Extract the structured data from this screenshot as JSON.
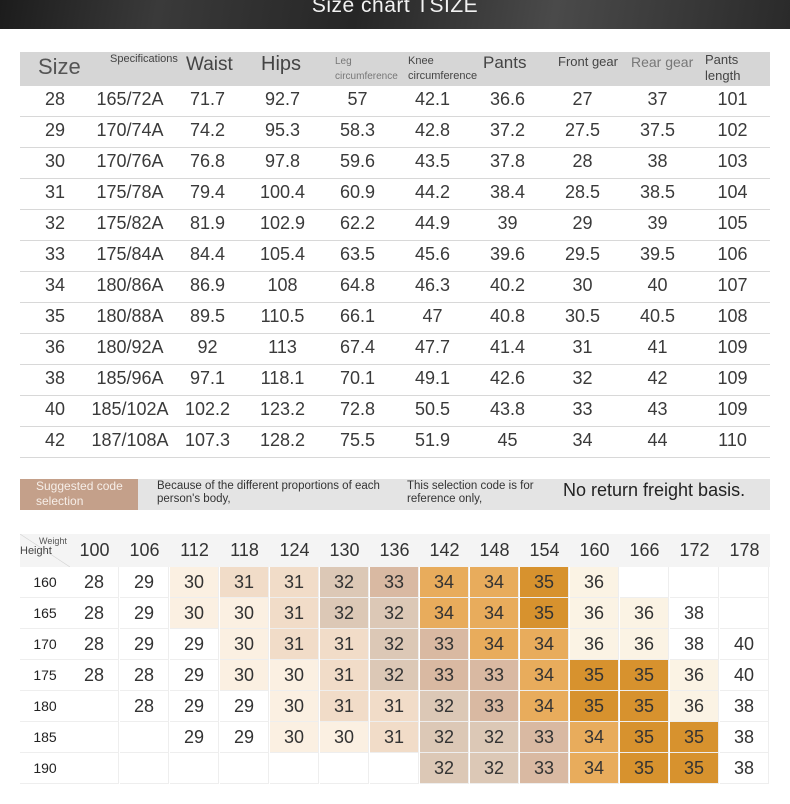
{
  "header": {
    "title": "Size chart TSIZE"
  },
  "size_table": {
    "headers": [
      "Size",
      "Specifications",
      "Waist",
      "Hips",
      "Leg circumference",
      "Knee circumference",
      "Pants",
      "Front gear",
      "Rear gear",
      "Pants length"
    ],
    "rows": [
      [
        "28",
        "165/72A",
        "71.7",
        "92.7",
        "57",
        "42.1",
        "36.6",
        "27",
        "37",
        "101"
      ],
      [
        "29",
        "170/74A",
        "74.2",
        "95.3",
        "58.3",
        "42.8",
        "37.2",
        "27.5",
        "37.5",
        "102"
      ],
      [
        "30",
        "170/76A",
        "76.8",
        "97.8",
        "59.6",
        "43.5",
        "37.8",
        "28",
        "38",
        "103"
      ],
      [
        "31",
        "175/78A",
        "79.4",
        "100.4",
        "60.9",
        "44.2",
        "38.4",
        "28.5",
        "38.5",
        "104"
      ],
      [
        "32",
        "175/82A",
        "81.9",
        "102.9",
        "62.2",
        "44.9",
        "39",
        "29",
        "39",
        "105"
      ],
      [
        "33",
        "175/84A",
        "84.4",
        "105.4",
        "63.5",
        "45.6",
        "39.6",
        "29.5",
        "39.5",
        "106"
      ],
      [
        "34",
        "180/86A",
        "86.9",
        "108",
        "64.8",
        "46.3",
        "40.2",
        "30",
        "40",
        "107"
      ],
      [
        "35",
        "180/88A",
        "89.5",
        "110.5",
        "66.1",
        "47",
        "40.8",
        "30.5",
        "40.5",
        "108"
      ],
      [
        "36",
        "180/92A",
        "92",
        "113",
        "67.4",
        "47.7",
        "41.4",
        "31",
        "41",
        "109"
      ],
      [
        "38",
        "185/96A",
        "97.1",
        "118.1",
        "70.1",
        "49.1",
        "42.6",
        "32",
        "42",
        "109"
      ],
      [
        "40",
        "185/102A",
        "102.2",
        "123.2",
        "72.8",
        "50.5",
        "43.8",
        "33",
        "43",
        "109"
      ],
      [
        "42",
        "187/108A",
        "107.3",
        "128.2",
        "75.5",
        "51.9",
        "45",
        "34",
        "44",
        "110"
      ]
    ]
  },
  "notice": {
    "tag": "Suggested code selection",
    "text1": "Because of the different proportions of each person's body,",
    "text2": "This selection code is for reference only,",
    "text3": "No return freight basis."
  },
  "size_grid": {
    "weight_label": "Weight",
    "height_label": "Height",
    "weights": [
      "100",
      "106",
      "112",
      "118",
      "124",
      "130",
      "136",
      "142",
      "148",
      "154",
      "160",
      "166",
      "172",
      "178"
    ],
    "rows": [
      {
        "height": "160",
        "cells": [
          "28",
          "29",
          "30",
          "31",
          "31",
          "32",
          "33",
          "34",
          "34",
          "35",
          "36",
          "",
          "",
          ""
        ]
      },
      {
        "height": "165",
        "cells": [
          "28",
          "29",
          "30",
          "30",
          "31",
          "32",
          "32",
          "34",
          "34",
          "35",
          "36",
          "36",
          "38",
          ""
        ]
      },
      {
        "height": "170",
        "cells": [
          "28",
          "29",
          "29",
          "30",
          "31",
          "31",
          "32",
          "33",
          "34",
          "34",
          "36",
          "36",
          "38",
          "40"
        ]
      },
      {
        "height": "175",
        "cells": [
          "28",
          "28",
          "29",
          "30",
          "30",
          "31",
          "32",
          "33",
          "33",
          "34",
          "35",
          "35",
          "36",
          "40"
        ]
      },
      {
        "height": "180",
        "cells": [
          "",
          "28",
          "29",
          "29",
          "30",
          "31",
          "31",
          "32",
          "33",
          "34",
          "35",
          "35",
          "36",
          "38"
        ]
      },
      {
        "height": "185",
        "cells": [
          "",
          "",
          "29",
          "29",
          "30",
          "30",
          "31",
          "32",
          "32",
          "33",
          "34",
          "35",
          "35",
          "38"
        ]
      },
      {
        "height": "190",
        "cells": [
          "",
          "",
          "",
          "",
          "",
          "",
          "",
          "32",
          "32",
          "33",
          "34",
          "35",
          "35",
          "38"
        ]
      }
    ],
    "size_colors": {
      "28": "#ffffff",
      "29": "#ffffff",
      "30": "#fbf0e2",
      "31": "#f1dcc8",
      "32": "#dcc8b6",
      "33": "#d9b9a2",
      "34": "#e8ac5c",
      "35": "#d7922e",
      "36": "#fbf3e4",
      "38": "#ffffff",
      "40": "#ffffff"
    }
  }
}
